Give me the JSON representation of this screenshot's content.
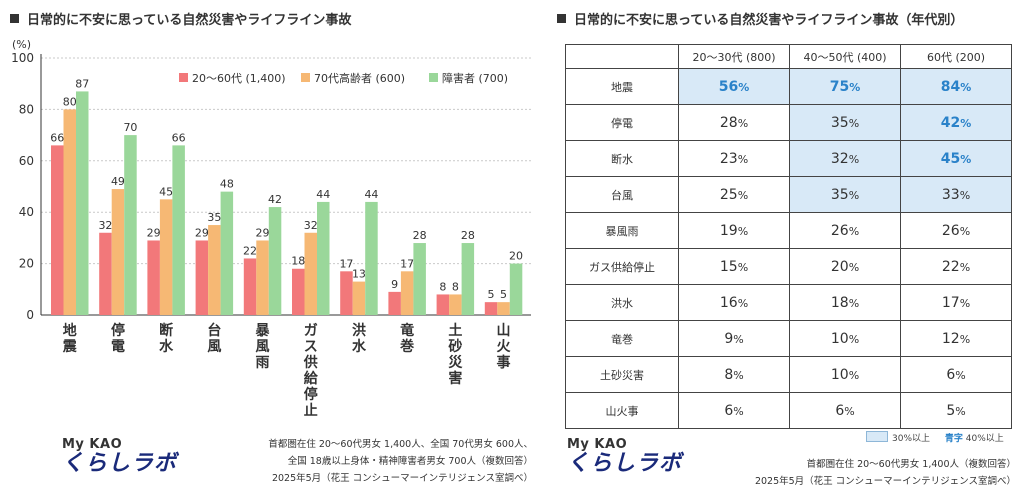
{
  "left": {
    "title": "日常的に不安に思っている自然災害やライフライン事故",
    "source_lines": [
      "首都圏在住 20〜60代男女 1,400人、全国 70代男女 600人、",
      "全国 18歳以上身体・精神障害者男女 700人（複数回答）",
      "2025年5月（花王 コンシューマーインテリジェンス室調べ）"
    ]
  },
  "right": {
    "title": "日常的に不安に思っている自然災害やライフライン事故（年代別）",
    "columns": [
      "20〜30代 (800)",
      "40〜50代 (400)",
      "60代 (200)"
    ],
    "rows": [
      {
        "label": "地震",
        "values": [
          56,
          75,
          84
        ]
      },
      {
        "label": "停電",
        "values": [
          28,
          35,
          42
        ]
      },
      {
        "label": "断水",
        "values": [
          23,
          32,
          45
        ]
      },
      {
        "label": "台風",
        "values": [
          25,
          35,
          33
        ]
      },
      {
        "label": "暴風雨",
        "values": [
          19,
          26,
          26
        ]
      },
      {
        "label": "ガス供給停止",
        "values": [
          15,
          20,
          22
        ]
      },
      {
        "label": "洪水",
        "values": [
          16,
          18,
          17
        ]
      },
      {
        "label": "竜巻",
        "values": [
          9,
          10,
          12
        ]
      },
      {
        "label": "土砂災害",
        "values": [
          8,
          10,
          6
        ]
      },
      {
        "label": "山火事",
        "values": [
          6,
          6,
          5
        ]
      }
    ],
    "legend": {
      "shaded": "30%以上",
      "blue_word": "青字",
      "blue": "40%以上"
    },
    "source_lines": [
      "首都圏在住 20〜60代男女 1,400人（複数回答）",
      "2025年5月（花王 コンシューマーインテリジェンス室調べ）"
    ],
    "colors": {
      "highlight": "#d8e9f7",
      "blue_text": "#2a82c9"
    }
  },
  "logo": {
    "my": "My KAO",
    "lab": "くらしラボ"
  },
  "chart_data": [
    {
      "type": "bar",
      "title": "日常的に不安に思っている自然災害やライフライン事故",
      "ylabel": "(%)",
      "ylim": [
        0,
        100
      ],
      "yticks": [
        0,
        20,
        40,
        60,
        80,
        100
      ],
      "grid": true,
      "legend_position": "top-right",
      "categories": [
        "地震",
        "停電",
        "断水",
        "台風",
        "暴風雨",
        "ガス供給停止",
        "洪水",
        "竜巻",
        "土砂災害",
        "山火事"
      ],
      "series": [
        {
          "name": "20〜60代 (1,400)",
          "color": "#f2787a",
          "values": [
            66,
            32,
            29,
            29,
            22,
            18,
            17,
            9,
            8,
            5
          ]
        },
        {
          "name": "70代高齢者 (600)",
          "color": "#f6b874",
          "values": [
            80,
            49,
            45,
            35,
            29,
            32,
            13,
            17,
            8,
            5
          ]
        },
        {
          "name": "障害者 (700)",
          "color": "#9ad79a",
          "values": [
            87,
            70,
            66,
            48,
            42,
            44,
            44,
            28,
            28,
            20
          ]
        }
      ]
    },
    {
      "type": "table",
      "title": "日常的に不安に思っている自然災害やライフライン事故（年代別）",
      "columns": [
        "20〜30代 (800)",
        "40〜50代 (400)",
        "60代 (200)"
      ],
      "rows": [
        "地震",
        "停電",
        "断水",
        "台風",
        "暴風雨",
        "ガス供給停止",
        "洪水",
        "竜巻",
        "土砂災害",
        "山火事"
      ],
      "values": [
        [
          56,
          75,
          84
        ],
        [
          28,
          35,
          42
        ],
        [
          23,
          32,
          45
        ],
        [
          25,
          35,
          33
        ],
        [
          19,
          26,
          26
        ],
        [
          15,
          20,
          22
        ],
        [
          16,
          18,
          17
        ],
        [
          9,
          10,
          12
        ],
        [
          8,
          10,
          6
        ],
        [
          6,
          6,
          5
        ]
      ],
      "unit": "%"
    }
  ]
}
